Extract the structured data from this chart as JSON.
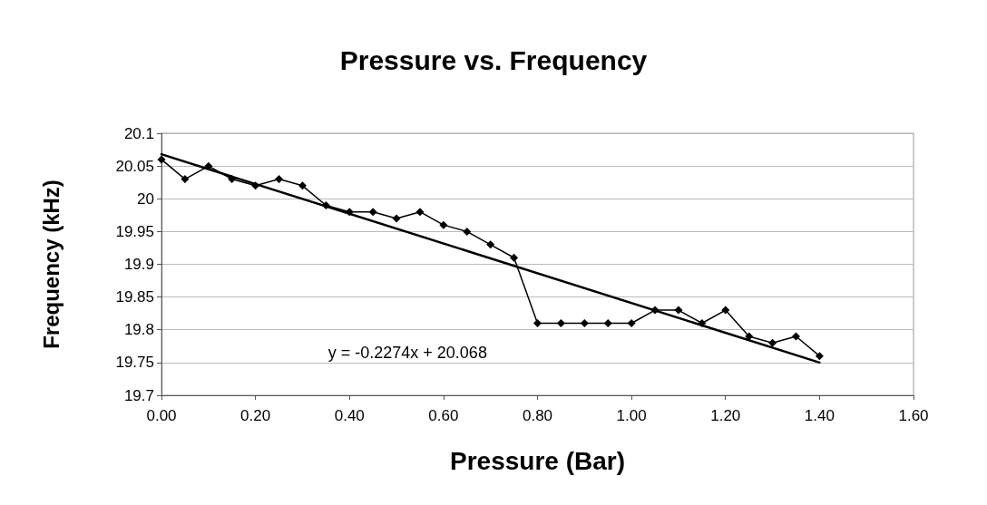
{
  "chart_data": {
    "type": "line",
    "title": "Pressure vs. Frequency",
    "xlabel": "Pressure (Bar)",
    "ylabel": "Frequency (kHz)",
    "x": [
      0,
      0.05,
      0.1,
      0.15,
      0.2,
      0.25,
      0.3,
      0.35,
      0.4,
      0.45,
      0.5,
      0.55,
      0.6,
      0.65,
      0.7,
      0.75,
      0.8,
      0.85,
      0.9,
      0.95,
      1.0,
      1.05,
      1.1,
      1.15,
      1.2,
      1.25,
      1.3,
      1.35,
      1.4
    ],
    "series": [
      {
        "color": "#000000",
        "marker": "diamond",
        "values": [
          20.06,
          20.03,
          20.05,
          20.03,
          20.02,
          20.03,
          20.02,
          19.99,
          19.98,
          19.98,
          19.97,
          19.98,
          19.96,
          19.95,
          19.93,
          19.91,
          19.81,
          19.81,
          19.81,
          19.81,
          19.81,
          19.83,
          19.83,
          19.81,
          19.83,
          19.79,
          19.78,
          19.79,
          19.76
        ]
      },
      {
        "type": "line",
        "color": "#000000",
        "marker": "none",
        "x": [
          0,
          1.4
        ],
        "values": [
          20.068,
          19.75
        ]
      }
    ],
    "annotations": [
      "y = -0.2274x + 20.068"
    ],
    "xlim": [
      0,
      1.6
    ],
    "xticks": [
      {
        "value": 0,
        "label": "0.00"
      },
      {
        "value": 0.2,
        "label": "0.20"
      },
      {
        "value": 0.4,
        "label": "0.40"
      },
      {
        "value": 0.6,
        "label": "0.60"
      },
      {
        "value": 0.8,
        "label": "0.80"
      },
      {
        "value": 1.0,
        "label": "1.00"
      },
      {
        "value": 1.2,
        "label": "1.20"
      },
      {
        "value": 1.4,
        "label": "1.40"
      },
      {
        "value": 1.6,
        "label": "1.60"
      }
    ],
    "ylim": [
      19.7,
      20.1
    ],
    "yticks": [
      19.7,
      19.75,
      19.8,
      19.85,
      19.9,
      19.95,
      20,
      20.05,
      20.1
    ],
    "grid": "y"
  }
}
